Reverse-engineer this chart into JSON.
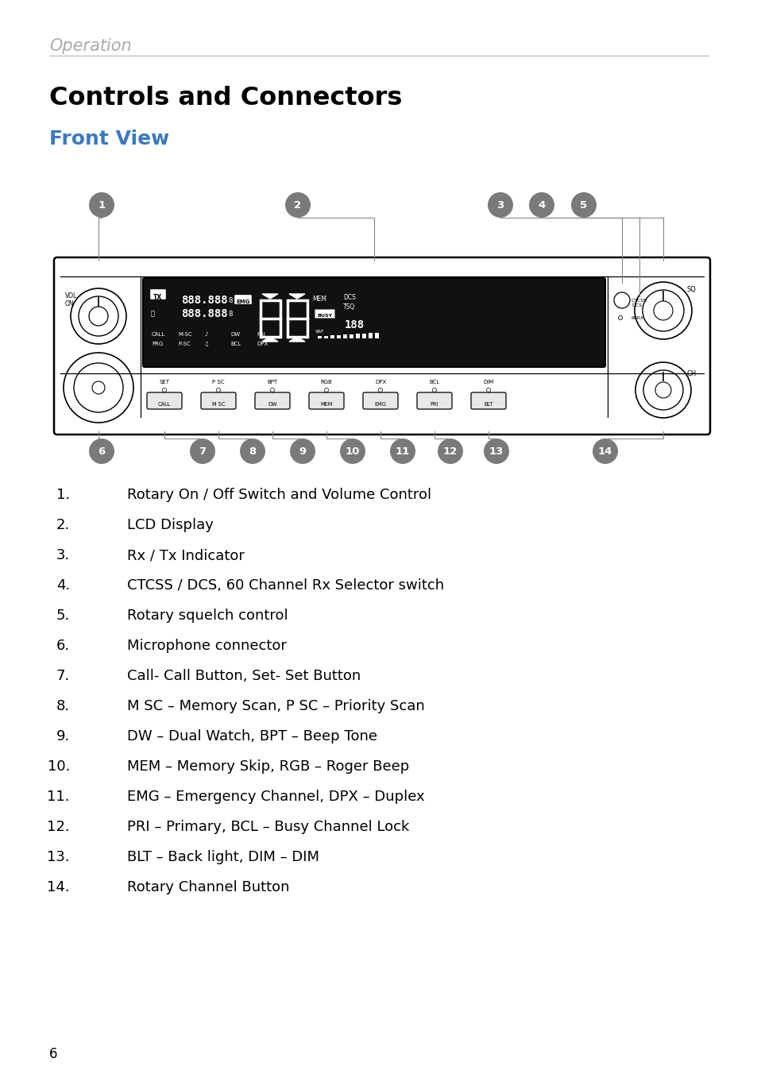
{
  "page_title": "Operation",
  "section_title": "Controls and Connectors",
  "subsection_title": "Front View",
  "bg_color": "#ffffff",
  "title_color": "#aaaaaa",
  "section_color": "#000000",
  "subsection_color": "#3a7abf",
  "badge_color": "#7a7a7a",
  "line_items": [
    {
      "num": "1.",
      "text": "Rotary On / Off Switch and Volume Control"
    },
    {
      "num": "2.",
      "text": "LCD Display"
    },
    {
      "num": "3.",
      "text": "Rx / Tx Indicator"
    },
    {
      "num": "4.",
      "text": "CTCSS / DCS, 60 Channel Rx Selector switch"
    },
    {
      "num": "5.",
      "text": "Rotary squelch control"
    },
    {
      "num": "6.",
      "text": "Microphone connector"
    },
    {
      "num": "7.",
      "text": "Call- Call Button, Set- Set Button"
    },
    {
      "num": "8.",
      "text": "M SC – Memory Scan, P SC – Priority Scan"
    },
    {
      "num": "9.",
      "text": "DW – Dual Watch, BPT – Beep Tone"
    },
    {
      "num": "10.",
      "text": "MEM – Memory Skip, RGB – Roger Beep"
    },
    {
      "num": "11.",
      "text": "EMG – Emergency Channel, DPX – Duplex"
    },
    {
      "num": "12.",
      "text": "PRI – Primary, BCL – Busy Channel Lock"
    },
    {
      "num": "13.",
      "text": "BLT – Back light, DIM – DIM"
    },
    {
      "num": "14.",
      "text": "Rotary Channel Button"
    }
  ],
  "page_num": "6"
}
